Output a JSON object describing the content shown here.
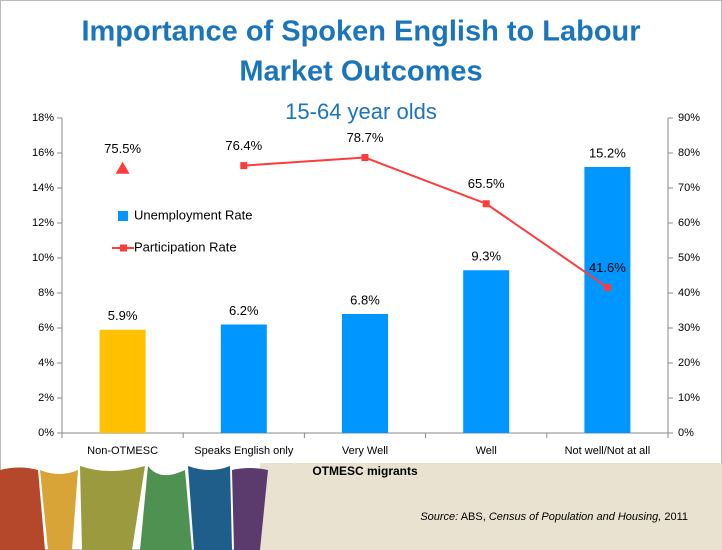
{
  "chart_data": {
    "type": "bar_line",
    "title_lines": [
      "Importance of Spoken English to Labour",
      "Market Outcomes"
    ],
    "subtitle": "15-64 year olds",
    "x_label": "OTMESC migrants",
    "source": {
      "label": "Source:",
      "publisher": "ABS,",
      "work": "Census of Population and Housing,",
      "year": "2011"
    },
    "categories": [
      "Non-OTMESC",
      "Speaks English only",
      "Very Well",
      "Well",
      "Not well/Not at all"
    ],
    "series": [
      {
        "name": "Unemployment Rate",
        "type": "bar",
        "color": "#0096ff",
        "colors": [
          "#ffc000",
          "#0096ff",
          "#0096ff",
          "#0096ff",
          "#0096ff"
        ],
        "values": [
          5.9,
          6.2,
          6.8,
          9.3,
          15.2
        ],
        "value_labels": [
          "5.9%",
          "6.2%",
          "6.8%",
          "9.3%",
          "15.2%"
        ]
      },
      {
        "name": "Participation Rate",
        "type": "line",
        "axis": "y2",
        "color": "#ff3b3b",
        "marker": "square",
        "values": [
          null,
          76.4,
          78.7,
          65.5,
          41.6
        ],
        "value_labels": [
          null,
          "76.4%",
          "78.7%",
          "65.5%",
          "41.6%"
        ]
      },
      {
        "type": "line",
        "axis": "y2",
        "color": "#ff3b3b",
        "marker": "triangle",
        "values": [
          75.5,
          null,
          null,
          null,
          null
        ],
        "value_labels": [
          "75.5%",
          null,
          null,
          null,
          null
        ]
      }
    ],
    "ylim": [
      0,
      18
    ],
    "yticks": [
      {
        "value": 0,
        "label": "0%"
      },
      {
        "value": 2,
        "label": "2%"
      },
      {
        "value": 4,
        "label": "4%"
      },
      {
        "value": 6,
        "label": "6%"
      },
      {
        "value": 8,
        "label": "8%"
      },
      {
        "value": 10,
        "label": "10%"
      },
      {
        "value": 12,
        "label": "12%"
      },
      {
        "value": 14,
        "label": "14%"
      },
      {
        "value": 16,
        "label": "16%"
      },
      {
        "value": 18,
        "label": "18%"
      }
    ],
    "y2lim": [
      0,
      90
    ],
    "y2ticks": [
      {
        "value": 0,
        "label": "0%"
      },
      {
        "value": 10,
        "label": "10%"
      },
      {
        "value": 20,
        "label": "20%"
      },
      {
        "value": 30,
        "label": "30%"
      },
      {
        "value": 40,
        "label": "40%"
      },
      {
        "value": 50,
        "label": "50%"
      },
      {
        "value": 60,
        "label": "60%"
      },
      {
        "value": 70,
        "label": "70%"
      },
      {
        "value": 80,
        "label": "80%"
      },
      {
        "value": 90,
        "label": "90%"
      }
    ],
    "legend": "left",
    "grid": false
  }
}
